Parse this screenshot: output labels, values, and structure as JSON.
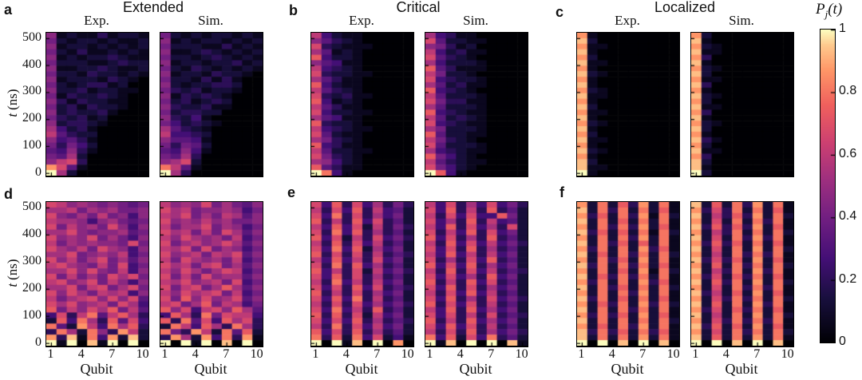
{
  "figure": {
    "panel_letters": [
      "a",
      "b",
      "c",
      "d",
      "e",
      "f"
    ],
    "column_titles": [
      "Extended",
      "Critical",
      "Localized"
    ],
    "subpanel_titles": {
      "exp": "Exp.",
      "sim": "Sim."
    },
    "xlabel": "Qubit",
    "ylabel": {
      "variable": "t",
      "unit": "(ns)"
    },
    "x_tick_labels": [
      "1",
      "4",
      "7",
      "10"
    ],
    "x_tick_values": [
      1,
      4,
      7,
      10
    ],
    "y_tick_labels": [
      "500",
      "400",
      "300",
      "200",
      "100",
      "0"
    ],
    "y_tick_values": [
      500,
      400,
      300,
      200,
      100,
      0
    ],
    "colorbar": {
      "label_symbol": "P",
      "label_subscript": "j",
      "label_argument": "(t)",
      "tick_labels": [
        "1",
        "0.8",
        "0.6",
        "0.4",
        "0.2",
        "0"
      ],
      "tick_values": [
        1,
        0.8,
        0.6,
        0.4,
        0.2,
        0
      ],
      "colormap": "magma",
      "color_low": "#000004",
      "color_mid": "#b73779",
      "color_high": "#fcfdbf"
    }
  },
  "chart_data": {
    "type": "heatmap",
    "qubits": [
      1,
      2,
      3,
      4,
      5,
      6,
      7,
      8,
      9,
      10
    ],
    "t_range_ns": [
      0,
      520
    ],
    "t_bins": 26,
    "value_range": [
      0,
      1
    ],
    "cell_encoding": "each row string = 10 hex digits (0-f); P_j(t) = hexdigit/15",
    "row_order": "first row = t=520 ns (top), last row = t=0 (bottom)",
    "panels": [
      {
        "letter": "a",
        "regime": "Extended",
        "exp": [
          "7121131221",
          "6212212112",
          "7122121212",
          "6213112121",
          "7121223211",
          "6222112322",
          "7112232112",
          "6221322121",
          "7122213210",
          "6212331200",
          "7223122110",
          "6132232100",
          "7313221100",
          "6231322100",
          "7232231000",
          "6323120000",
          "7233210000",
          "8423100000",
          "9532200000",
          "7453100000",
          "6364200000",
          "5473100000",
          "6582000000",
          "79a3000000",
          "da51000000",
          "f820000000"
        ],
        "sim": [
          "6212122121",
          "7121221212",
          "6222113121",
          "7112321212",
          "6221232121",
          "7122122312",
          "6213212121",
          "7122132210",
          "6221313100",
          "7212233200",
          "6323122100",
          "7132321000",
          "6231232000",
          "7322311000",
          "6233220000",
          "7324100000",
          "6423210000",
          "8532100000",
          "9443200000",
          "7554100000",
          "6365200000",
          "5474100000",
          "6583000000",
          "78a2000000",
          "c951000000",
          "f830000000"
        ]
      },
      {
        "letter": "b",
        "regime": "Critical",
        "exp": [
          "9421100000",
          "7532100000",
          "a321110000",
          "8512100000",
          "b422100000",
          "7541100000",
          "9432100000",
          "a322110000",
          "8531100000",
          "b421100000",
          "9532100000",
          "a323110000",
          "b412100000",
          "9531100000",
          "a422110000",
          "8541100000",
          "b322100000",
          "9432110000",
          "a521100000",
          "8632100000",
          "b431100000",
          "9522110000",
          "a632100000",
          "8742100000",
          "b531100000",
          "fc41000000"
        ],
        "sim": [
          "8431100000",
          "a522110000",
          "7631200000",
          "9423110000",
          "a532100000",
          "8422210000",
          "b531110000",
          "9622100000",
          "a432210000",
          "8523110000",
          "b432100000",
          "9522210000",
          "a633110000",
          "8522210000",
          "b432110000",
          "9523210000",
          "a432110000",
          "8622210000",
          "b522110000",
          "9632100000",
          "a522210000",
          "8432110000",
          "b642100000",
          "9532110000",
          "a642100000",
          "fb41000000"
        ]
      },
      {
        "letter": "c",
        "regime": "Localized",
        "exp": [
          "d100000000",
          "e200000000",
          "d110000000",
          "e100000000",
          "d200000000",
          "e110000000",
          "d100000000",
          "e210000000",
          "d100000000",
          "e100000000",
          "d210000000",
          "e110000000",
          "d100000000",
          "e200000000",
          "d110000000",
          "e100000000",
          "d210000000",
          "e100000000",
          "d200000000",
          "e110000000",
          "d100000000",
          "e210000000",
          "d100000000",
          "e200000000",
          "e110000000",
          "f100000000"
        ],
        "sim": [
          "d200000000",
          "e100000000",
          "d210000000",
          "e110000000",
          "d300000000",
          "e100000000",
          "d210000000",
          "e200000000",
          "d110000000",
          "e300000000",
          "d100000000",
          "e210000000",
          "d200000000",
          "e110000000",
          "d300000000",
          "e100000000",
          "d210000000",
          "e200000000",
          "d100000000",
          "e310000000",
          "d200000000",
          "e110000000",
          "d300000000",
          "e200000000",
          "e100000000",
          "f200000000"
        ]
      },
      {
        "letter": "d",
        "regime": "Extended",
        "exp": [
          "a978767656",
          "8896878667",
          "a768696747",
          "9887478656",
          "a69786a747",
          "88a7677856",
          "a787a68647",
          "96878776a6",
          "a8796a8747",
          "88a6787946",
          "a7968a6857",
          "9a87696a46",
          "88a7a76947",
          "a69686a8a6",
          "9a78a69747",
          "88a69a68a6",
          "a7a8698947",
          "9689a7a7a5",
          "a8a7896a84",
          "b697a8b695",
          "4a39c59b83",
          "2b4c83b5a4",
          "c52d94c8b3",
          "3c82c73d92",
          "d3e1c4d2e2",
          "f1f0e1f0f0"
        ],
        "sim": [
          "9787a68657",
          "a896778746",
          "98a6869857",
          "a787978667",
          "9688a68746",
          "a89696a857",
          "97a8786946",
          "a68978a857",
          "98a6a68746",
          "a789698a57",
          "96a8786946",
          "a8969a6857",
          "97a868a946",
          "a696a78857",
          "98a7896a46",
          "a69a68b857",
          "97a89a6946",
          "a6b7a78a57",
          "9a68b69846",
          "b7a49a7b85",
          "4b83c6a994",
          "b3c5a4b8a3",
          "2c94b83c83",
          "c63d92c5b2",
          "3d82d4c3d1",
          "f0f1f0e0f0"
        ]
      },
      {
        "letter": "e",
        "regime": "Critical",
        "exp": [
          "a4b3a48363",
          "93a4b39452",
          "a4c3a38462",
          "b393b4a352",
          "94b4a29363",
          "a3c4b38352",
          "b4a293a463",
          "93b3a49352",
          "a4c4b28462",
          "b3a3a39353",
          "94b493a462",
          "a3c3b48352",
          "b493a29463",
          "a4b3a38352",
          "93c4939462",
          "a4a3b4a353",
          "b393a38462",
          "a4b4c39352",
          "93a3a48463",
          "a4c493b352",
          "b3b3a29462",
          "a4a4b38353",
          "93c3a49462",
          "b4a3b38352",
          "c3b2c4a241",
          "f0f1e0f0d0"
        ],
        "sim": [
          "94a384a463",
          "a4b393b352",
          "93a4a44b62",
          "a483b39452",
          "94b3a483a2",
          "a394b3a462",
          "b4a383b352",
          "93b4a49463",
          "a4a3b38352",
          "94b4939462",
          "a383a4b352",
          "b4a4b38462",
          "93b3a49353",
          "a4a483b462",
          "b393b4a352",
          "a4b3a38462",
          "93a4b49352",
          "a4b383a463",
          "b3a4a39352",
          "94b3b48462",
          "a4a393a353",
          "b393b48462",
          "a4b4a39352",
          "93a3b38463",
          "c4b2a4c352",
          "f1e0f0f0e1"
        ]
      },
      {
        "letter": "f",
        "regime": "Localized",
        "exp": [
          "d2c2b3d2c1",
          "e2c3c2c2b1",
          "d3b2c3d1c2",
          "e2c2b2c2c1",
          "d2c3c3d2b1",
          "e3b2b2c1c2",
          "d2c2c3d2c1",
          "e2c3b2b2c1",
          "d3c2c2d3b1",
          "e2b2c3c2c2",
          "d2c3b2d2c1",
          "e3c2c3c2b1",
          "d2c2b2d1c2",
          "e2b3c3c2c1",
          "d3c2c2d3b1",
          "e2c3b2c2c2",
          "d2c2c3d2c1",
          "e3c2b2c2b1",
          "d2b3c2d3c2",
          "e2c2c3c2c1",
          "d3c3b2d2b1",
          "e2c2c2c2c2",
          "d2b2c3d2c1",
          "e3c3b2c3b1",
          "e2c2c2d2c1",
          "f0f0e0f0e0"
        ],
        "sim": [
          "e2b2c3d2c1",
          "d3a3c2c2b1",
          "e293b3d2c2",
          "d2a2c2c3c1",
          "e3b3b3d2b1",
          "d293c2c2c2",
          "e2a2c3d3c1",
          "d3b3b2c2b1",
          "e2a2c2d2c2",
          "d292c3c3c1",
          "e3a3b2d2b1",
          "d2b2c3c2c2",
          "e293c2d3c1",
          "d3a2b3c2b1",
          "e2b3c2d2c2",
          "d2a2c3c3c1",
          "e392b2d2b1",
          "d2a3c3c2c2",
          "e2b2c2d3c1",
          "d3a2b3c2b1",
          "e292c2d2c2",
          "d2a3c3c3c1",
          "e3b2b2d2b1",
          "d2a2c3c2c2",
          "e2b2c2d2c1",
          "f0f0e0f0e0"
        ]
      }
    ]
  }
}
